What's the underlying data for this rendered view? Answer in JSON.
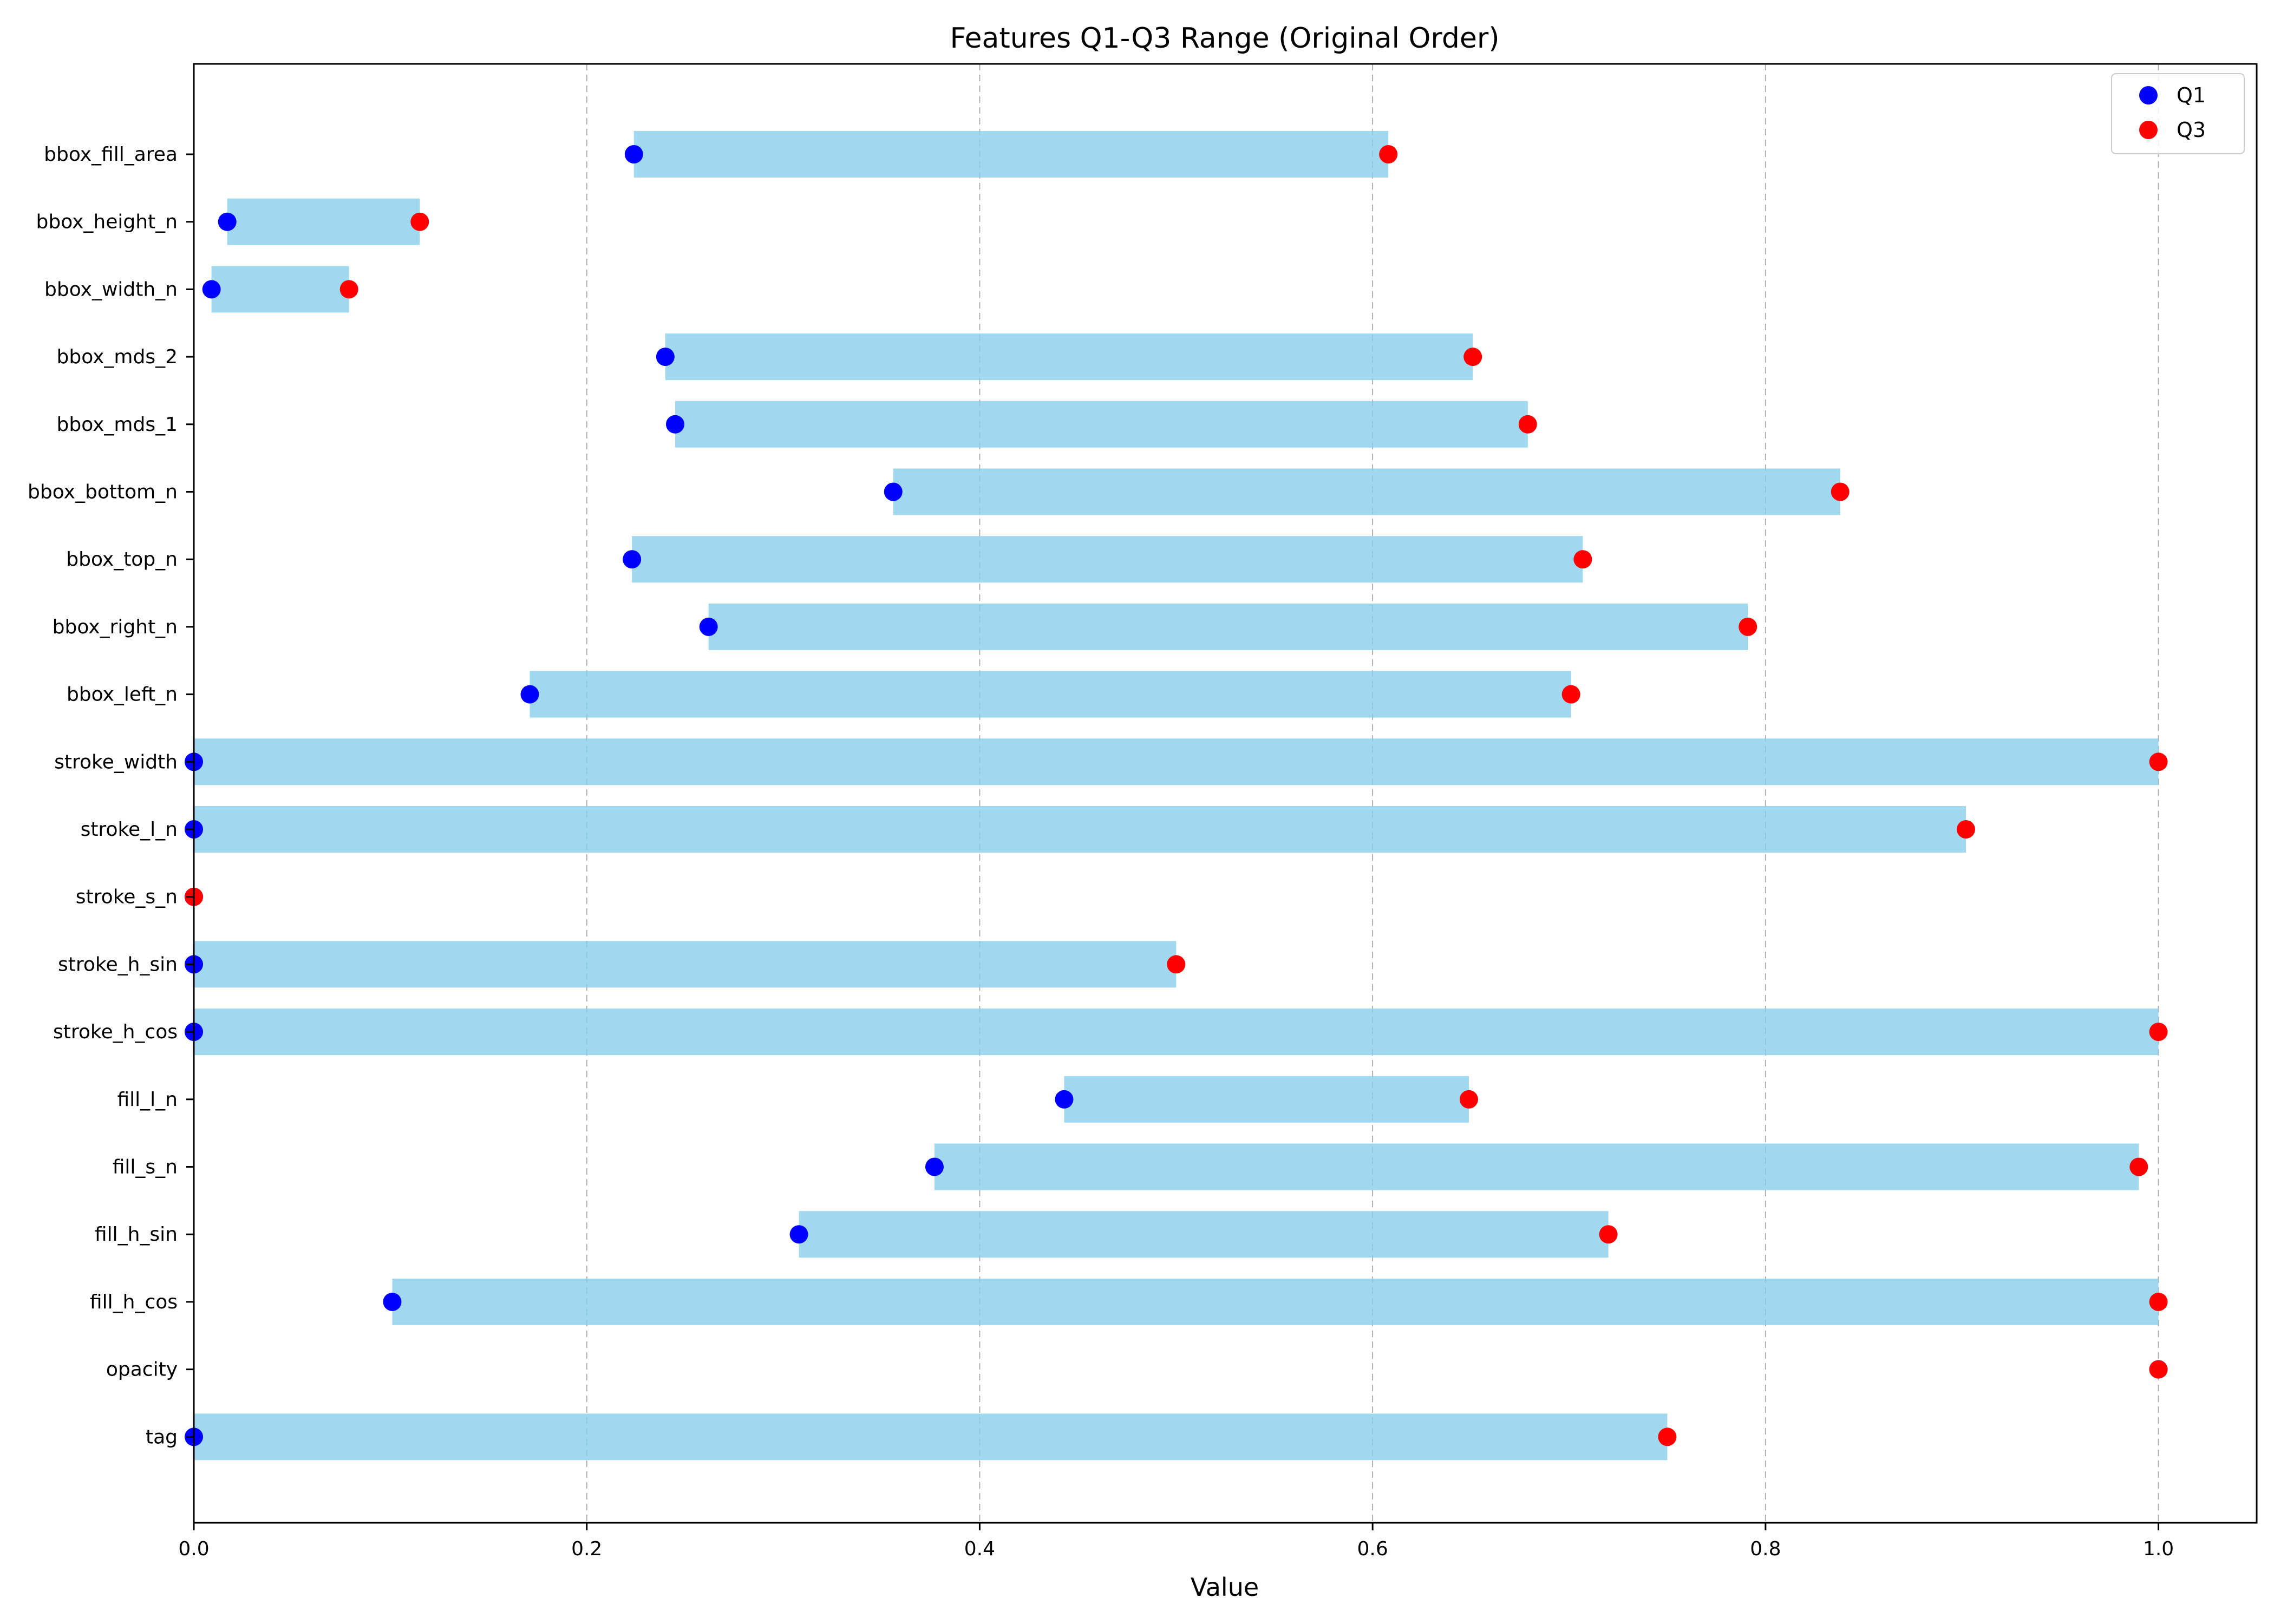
{
  "chart_data": {
    "type": "bar",
    "orientation": "horizontal",
    "title": "Features Q1-Q3 Range (Original Order)",
    "xlabel": "Value",
    "ylabel": "",
    "xlim": [
      0.0,
      1.05
    ],
    "xticks": [
      0.0,
      0.2,
      0.4,
      0.6,
      0.8,
      1.0
    ],
    "xtick_labels": [
      "0.0",
      "0.2",
      "0.4",
      "0.6",
      "0.8",
      "1.0"
    ],
    "grid": {
      "x": true,
      "y": false,
      "style": "dashed"
    },
    "legend_position": "top-right",
    "colors": {
      "bar": "#87ceeb",
      "q1": "#0000ff",
      "q3": "#ff0000"
    },
    "series": [
      {
        "name": "Q1",
        "marker": "circle"
      },
      {
        "name": "Q3",
        "marker": "circle"
      }
    ],
    "features": [
      {
        "name": "bbox_fill_area",
        "q1": 0.224,
        "q3": 0.608
      },
      {
        "name": "bbox_height_n",
        "q1": 0.017,
        "q3": 0.115
      },
      {
        "name": "bbox_width_n",
        "q1": 0.009,
        "q3": 0.079
      },
      {
        "name": "bbox_mds_2",
        "q1": 0.24,
        "q3": 0.651
      },
      {
        "name": "bbox_mds_1",
        "q1": 0.245,
        "q3": 0.679
      },
      {
        "name": "bbox_bottom_n",
        "q1": 0.356,
        "q3": 0.838
      },
      {
        "name": "bbox_top_n",
        "q1": 0.223,
        "q3": 0.707
      },
      {
        "name": "bbox_right_n",
        "q1": 0.262,
        "q3": 0.791
      },
      {
        "name": "bbox_left_n",
        "q1": 0.171,
        "q3": 0.701
      },
      {
        "name": "stroke_width",
        "q1": 0.0,
        "q3": 1.0
      },
      {
        "name": "stroke_l_n",
        "q1": 0.0,
        "q3": 0.902
      },
      {
        "name": "stroke_s_n",
        "q1": 0.0,
        "q3": 0.0
      },
      {
        "name": "stroke_h_sin",
        "q1": 0.0,
        "q3": 0.5
      },
      {
        "name": "stroke_h_cos",
        "q1": 0.0,
        "q3": 1.0
      },
      {
        "name": "fill_l_n",
        "q1": 0.443,
        "q3": 0.649
      },
      {
        "name": "fill_s_n",
        "q1": 0.377,
        "q3": 0.99
      },
      {
        "name": "fill_h_sin",
        "q1": 0.308,
        "q3": 0.72
      },
      {
        "name": "fill_h_cos",
        "q1": 0.101,
        "q3": 1.0
      },
      {
        "name": "opacity",
        "q1": 1.0,
        "q3": 1.0
      },
      {
        "name": "tag",
        "q1": 0.0,
        "q3": 0.75
      }
    ]
  }
}
